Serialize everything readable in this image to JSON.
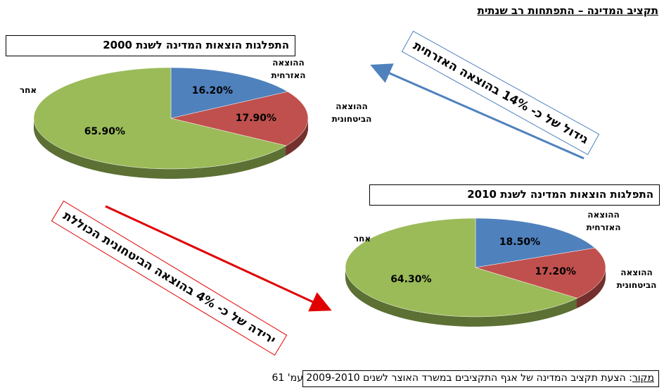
{
  "title": "תקציב המדינה – התפתחות רב שנתית",
  "annotations": [
    "גידול של כ- 14% בהוצאה האזרחית",
    "ירידה של כ- 4% בהוצאה הביטחונית הכוללת"
  ],
  "source": {
    "label": "מקור",
    "text": ": הצעת תקציב המדינה של אגף התקציבים במשרד האוצר לשנים 2009-2010 עמ' 61"
  },
  "chart_data": [
    {
      "type": "pie",
      "title": "התפלגות הוצאות המדינה לשנת 2000",
      "categories": [
        "ההוצאה האזרחית",
        "ההוצאה הביטחונית",
        "אחר"
      ],
      "values": [
        16.2,
        17.9,
        65.9
      ],
      "value_labels": [
        "16.20%",
        "17.90%",
        "65.90%"
      ],
      "colors": [
        "#4f81bd",
        "#c0504d",
        "#9bbb59"
      ]
    },
    {
      "type": "pie",
      "title": "התפלגות הוצאות המדינה לשנת 2010",
      "categories": [
        "ההוצאה האזרחית",
        "ההוצאה הביטחונית",
        "אחר"
      ],
      "values": [
        18.5,
        17.2,
        64.3
      ],
      "value_labels": [
        "18.50%",
        "17.20%",
        "64.30%"
      ],
      "colors": [
        "#4f81bd",
        "#c0504d",
        "#9bbb59"
      ]
    }
  ]
}
